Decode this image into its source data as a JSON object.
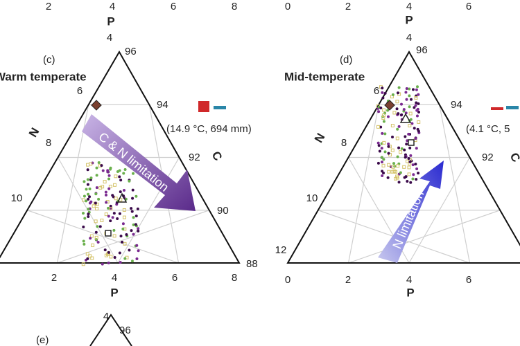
{
  "panels": [
    {
      "label": "(c)",
      "title": "Warm temperate",
      "climate": "(14.9 °C, 694 mm)",
      "arrow_text": "C & N limitation",
      "top_axis": {
        "name": "P",
        "ticks": [
          "2",
          "4",
          "6",
          "8"
        ]
      },
      "apex_ticks": {
        "left": "4",
        "right": "96"
      },
      "left_axis": {
        "name": "N",
        "ticks": [
          "6",
          "8",
          "10"
        ]
      },
      "right_axis": {
        "name": "C",
        "ticks": [
          "94",
          "92",
          "90",
          "88"
        ]
      },
      "bottom_axis": {
        "name": "P",
        "ticks": [
          "2",
          "4",
          "6",
          "8"
        ]
      }
    },
    {
      "label": "(d)",
      "title": "Mid-temperate",
      "climate": "(4.1 °C, 5",
      "arrow_text": "N limitation",
      "top_axis": {
        "name": "P",
        "ticks": [
          "0",
          "2",
          "4",
          "6"
        ]
      },
      "apex_ticks": {
        "left": "4",
        "right": "96"
      },
      "left_axis": {
        "name": "N",
        "ticks": [
          "6",
          "8",
          "10",
          "12"
        ]
      },
      "right_axis": {
        "name": "C",
        "ticks": [
          "94",
          "92"
        ]
      },
      "bottom_axis": {
        "name": "P",
        "ticks": [
          "0",
          "2",
          "4",
          "6"
        ]
      }
    },
    {
      "label": "(e)",
      "apex_ticks": {
        "left": "4",
        "right": "96"
      }
    }
  ]
}
